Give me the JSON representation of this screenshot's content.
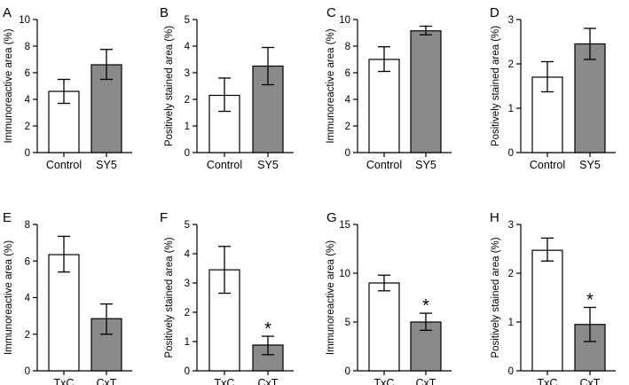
{
  "colors": {
    "bar_control": "#ffffff",
    "bar_treated": "#8a8a8a",
    "stroke": "#000000"
  },
  "chart_data": [
    {
      "type": "bar",
      "panel": "A",
      "ylabel": "Immunoreactive area (%)",
      "ylim": [
        0,
        10
      ],
      "yticks": [
        0,
        2,
        4,
        6,
        8,
        10
      ],
      "categories": [
        "Control",
        "SY5"
      ],
      "values": [
        4.6,
        6.6
      ],
      "errors": [
        [
          3.7,
          5.5
        ],
        [
          5.5,
          7.75
        ]
      ],
      "significant": [
        false,
        false
      ]
    },
    {
      "type": "bar",
      "panel": "B",
      "ylabel": "Positively stained area (%)",
      "ylim": [
        0,
        5
      ],
      "yticks": [
        0,
        1,
        2,
        3,
        4,
        5
      ],
      "categories": [
        "Control",
        "SY5"
      ],
      "values": [
        2.15,
        3.25
      ],
      "errors": [
        [
          1.55,
          2.8
        ],
        [
          2.55,
          3.95
        ]
      ],
      "significant": [
        false,
        false
      ]
    },
    {
      "type": "bar",
      "panel": "C",
      "ylabel": "Immunoreactive area (%)",
      "ylim": [
        0,
        10
      ],
      "yticks": [
        0,
        2,
        4,
        6,
        8,
        10
      ],
      "categories": [
        "Control",
        "SY5"
      ],
      "values": [
        7.0,
        9.15
      ],
      "errors": [
        [
          6.1,
          7.95
        ],
        [
          8.85,
          9.5
        ]
      ],
      "significant": [
        false,
        false
      ]
    },
    {
      "type": "bar",
      "panel": "D",
      "ylabel": "Positively stained area (%)",
      "ylim": [
        0,
        3
      ],
      "yticks": [
        0,
        1,
        2,
        3
      ],
      "categories": [
        "Control",
        "SY5"
      ],
      "values": [
        1.7,
        2.45
      ],
      "errors": [
        [
          1.37,
          2.05
        ],
        [
          2.1,
          2.8
        ]
      ],
      "significant": [
        false,
        false
      ]
    },
    {
      "type": "bar",
      "panel": "E",
      "ylabel": "Immunoreactive area (%)",
      "ylim": [
        0,
        8
      ],
      "yticks": [
        0,
        2,
        4,
        6,
        8
      ],
      "categories": [
        "TxC",
        "CxT"
      ],
      "values": [
        6.35,
        2.85
      ],
      "errors": [
        [
          5.4,
          7.35
        ],
        [
          2.0,
          3.65
        ]
      ],
      "significant": [
        false,
        false
      ]
    },
    {
      "type": "bar",
      "panel": "F",
      "ylabel": "Positively stained area (%)",
      "ylim": [
        0,
        5
      ],
      "yticks": [
        0,
        1,
        2,
        3,
        4,
        5
      ],
      "categories": [
        "TxC",
        "CxT"
      ],
      "values": [
        3.45,
        0.88
      ],
      "errors": [
        [
          2.65,
          4.25
        ],
        [
          0.55,
          1.18
        ]
      ],
      "significant": [
        false,
        true
      ]
    },
    {
      "type": "bar",
      "panel": "G",
      "ylabel": "Immunoreactive area (%)",
      "ylim": [
        0,
        15
      ],
      "yticks": [
        0,
        5,
        10,
        15
      ],
      "categories": [
        "TxC",
        "CxT"
      ],
      "values": [
        9.0,
        5.0
      ],
      "errors": [
        [
          8.2,
          9.8
        ],
        [
          4.15,
          5.9
        ]
      ],
      "significant": [
        false,
        true
      ]
    },
    {
      "type": "bar",
      "panel": "H",
      "ylabel": "Positively stained area (%)",
      "ylim": [
        0,
        3
      ],
      "yticks": [
        0,
        1,
        2,
        3
      ],
      "categories": [
        "TxC",
        "CxT"
      ],
      "values": [
        2.47,
        0.95
      ],
      "errors": [
        [
          2.25,
          2.72
        ],
        [
          0.6,
          1.3
        ]
      ],
      "significant": [
        false,
        true
      ]
    }
  ],
  "significance_marker": "*"
}
